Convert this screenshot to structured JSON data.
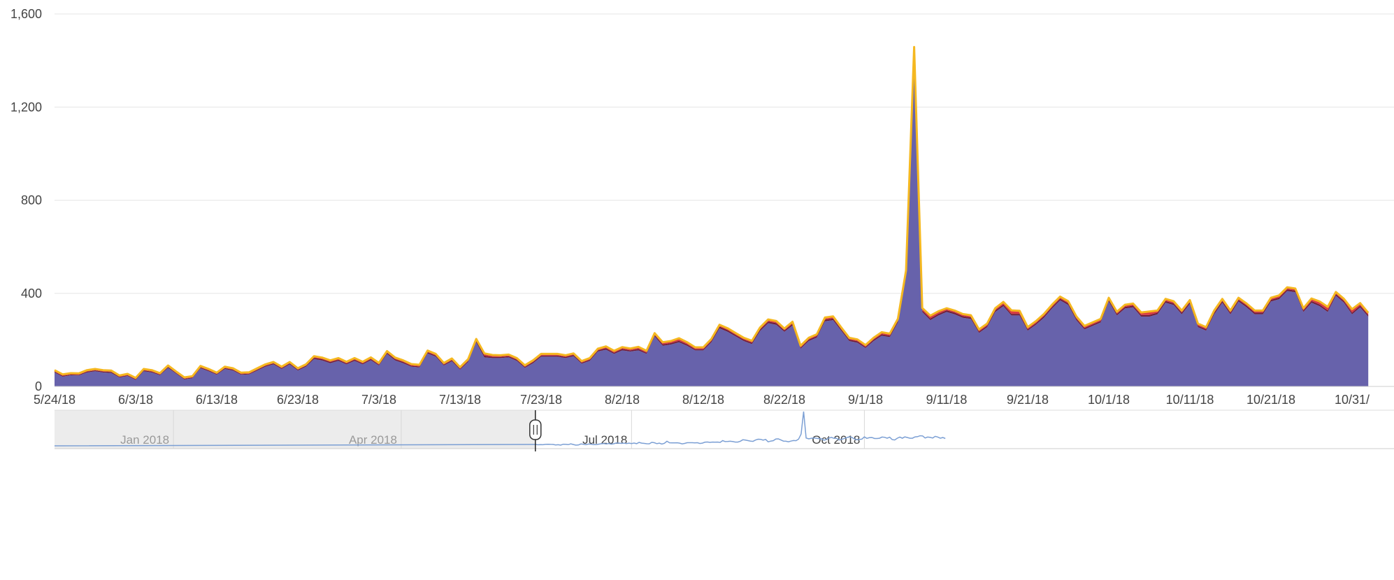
{
  "chart_data": {
    "type": "area",
    "title": "",
    "xlabel": "",
    "ylabel": "",
    "ylim": [
      0,
      1600
    ],
    "y_ticks": [
      "0",
      "400",
      "800",
      "1,200",
      "1,600"
    ],
    "x_tick_labels": [
      "5/24/18",
      "6/3/18",
      "6/13/18",
      "6/23/18",
      "7/3/18",
      "7/13/18",
      "7/23/18",
      "8/2/18",
      "8/12/18",
      "8/22/18",
      "9/1/18",
      "9/11/18",
      "9/21/18",
      "10/1/18",
      "10/11/18",
      "10/21/18",
      "10/31/"
    ],
    "x_start": "2018-05-24",
    "grid": true,
    "legend": "none",
    "stacked": true,
    "series": [
      {
        "color": "#6762ab",
        "values": [
          60,
          42,
          48,
          47,
          60,
          65,
          60,
          58,
          38,
          45,
          28,
          65,
          60,
          48,
          80,
          55,
          30,
          35,
          78,
          65,
          50,
          75,
          68,
          50,
          52,
          68,
          85,
          95,
          75,
          95,
          68,
          85,
          118,
          112,
          100,
          110,
          95,
          110,
          95,
          113,
          90,
          140,
          112,
          100,
          85,
          82,
          142,
          128,
          90,
          108,
          72,
          105,
          190,
          125,
          122,
          122,
          125,
          110,
          80,
          100,
          128,
          128,
          128,
          122,
          130,
          98,
          110,
          150,
          158,
          140,
          155,
          150,
          155,
          140,
          215,
          175,
          180,
          190,
          175,
          155,
          155,
          190,
          250,
          235,
          215,
          195,
          182,
          238,
          272,
          265,
          235,
          262,
          162,
          195,
          210,
          280,
          285,
          240,
          195,
          188,
          165,
          195,
          218,
          212,
          275,
          480,
          1400,
          320,
          285,
          305,
          320,
          310,
          295,
          290,
          230,
          255,
          320,
          345,
          305,
          305,
          240,
          265,
          295,
          335,
          370,
          350,
          285,
          245,
          260,
          275,
          365,
          305,
          335,
          340,
          300,
          300,
          310,
          360,
          350,
          310,
          355,
          255,
          240,
          310,
          360,
          310,
          365,
          340,
          310,
          310,
          365,
          375,
          410,
          405,
          320,
          360,
          345,
          320,
          390,
          360,
          310,
          340,
          300
        ]
      },
      {
        "color": "#6e1d3a",
        "values": [
          4,
          4,
          3,
          3,
          4,
          4,
          4,
          4,
          3,
          3,
          3,
          4,
          4,
          3,
          4,
          3,
          3,
          3,
          4,
          4,
          3,
          4,
          4,
          3,
          3,
          4,
          4,
          4,
          4,
          4,
          4,
          4,
          5,
          5,
          5,
          5,
          4,
          5,
          4,
          5,
          4,
          5,
          5,
          5,
          4,
          4,
          5,
          5,
          4,
          5,
          4,
          5,
          6,
          8,
          5,
          5,
          5,
          5,
          4,
          5,
          5,
          5,
          5,
          5,
          5,
          4,
          5,
          5,
          6,
          5,
          6,
          5,
          6,
          5,
          6,
          6,
          6,
          6,
          6,
          5,
          5,
          6,
          7,
          7,
          6,
          6,
          6,
          7,
          7,
          7,
          6,
          7,
          5,
          6,
          6,
          7,
          7,
          6,
          6,
          6,
          5,
          6,
          6,
          6,
          7,
          8,
          10,
          7,
          7,
          7,
          7,
          7,
          7,
          7,
          6,
          6,
          7,
          7,
          7,
          7,
          6,
          6,
          7,
          7,
          7,
          7,
          7,
          6,
          6,
          6,
          7,
          7,
          7,
          7,
          7,
          7,
          7,
          7,
          7,
          7,
          7,
          6,
          6,
          7,
          7,
          7,
          7,
          7,
          7,
          7,
          7,
          7,
          7,
          7,
          7,
          7,
          7,
          7,
          7,
          7,
          7,
          7,
          7
        ]
      },
      {
        "color": "#d93b43",
        "values": [
          3,
          3,
          3,
          3,
          3,
          3,
          3,
          3,
          3,
          3,
          3,
          3,
          3,
          3,
          3,
          3,
          3,
          3,
          3,
          3,
          3,
          3,
          3,
          3,
          3,
          3,
          3,
          3,
          3,
          3,
          3,
          3,
          4,
          4,
          4,
          4,
          4,
          4,
          4,
          4,
          4,
          4,
          4,
          4,
          4,
          4,
          4,
          4,
          4,
          4,
          4,
          4,
          5,
          6,
          5,
          4,
          4,
          4,
          4,
          4,
          4,
          4,
          4,
          4,
          4,
          4,
          4,
          4,
          5,
          5,
          5,
          5,
          6,
          5,
          5,
          6,
          6,
          8,
          6,
          5,
          5,
          5,
          5,
          5,
          5,
          5,
          5,
          5,
          6,
          6,
          5,
          6,
          5,
          5,
          5,
          6,
          6,
          5,
          5,
          5,
          5,
          5,
          6,
          6,
          6,
          6,
          8,
          6,
          9,
          8,
          6,
          6,
          6,
          6,
          6,
          6,
          6,
          8,
          12,
          10,
          6,
          6,
          6,
          6,
          6,
          6,
          6,
          6,
          6,
          6,
          6,
          6,
          6,
          6,
          8,
          12,
          6,
          6,
          6,
          6,
          6,
          6,
          6,
          6,
          6,
          6,
          6,
          6,
          6,
          6,
          6,
          6,
          6,
          6,
          6,
          8,
          10,
          12,
          6,
          6,
          12,
          8,
          6
        ]
      },
      {
        "color": "#f5b820",
        "values": [
          3,
          3,
          3,
          3,
          3,
          3,
          3,
          3,
          3,
          3,
          3,
          3,
          3,
          3,
          3,
          3,
          3,
          3,
          3,
          3,
          3,
          3,
          3,
          3,
          3,
          3,
          3,
          3,
          3,
          3,
          3,
          3,
          3,
          3,
          3,
          3,
          3,
          3,
          3,
          3,
          3,
          3,
          3,
          3,
          3,
          3,
          3,
          3,
          3,
          3,
          3,
          3,
          3,
          3,
          3,
          3,
          3,
          3,
          3,
          3,
          3,
          3,
          3,
          3,
          3,
          3,
          3,
          3,
          3,
          3,
          3,
          3,
          3,
          3,
          3,
          3,
          3,
          3,
          3,
          3,
          3,
          3,
          3,
          3,
          3,
          3,
          3,
          3,
          3,
          3,
          3,
          3,
          3,
          3,
          3,
          3,
          3,
          3,
          3,
          3,
          3,
          3,
          3,
          3,
          3,
          4,
          40,
          4,
          3,
          3,
          3,
          3,
          3,
          3,
          3,
          3,
          3,
          3,
          3,
          3,
          3,
          3,
          3,
          3,
          3,
          3,
          3,
          3,
          3,
          3,
          3,
          3,
          3,
          3,
          3,
          3,
          3,
          3,
          3,
          3,
          3,
          3,
          3,
          3,
          3,
          3,
          3,
          3,
          3,
          3,
          3,
          3,
          3,
          3,
          3,
          3,
          3,
          3,
          3,
          3,
          3,
          3,
          3
        ]
      }
    ]
  },
  "navigator": {
    "labels": [
      "Jan 2018",
      "Apr 2018",
      "Jul 2018",
      "Oct 2018"
    ],
    "selection_start": "2018-05-24",
    "line_color": "#7b9fd4",
    "peaks": [
      "2018-09-06",
      "2018-10-10"
    ]
  }
}
